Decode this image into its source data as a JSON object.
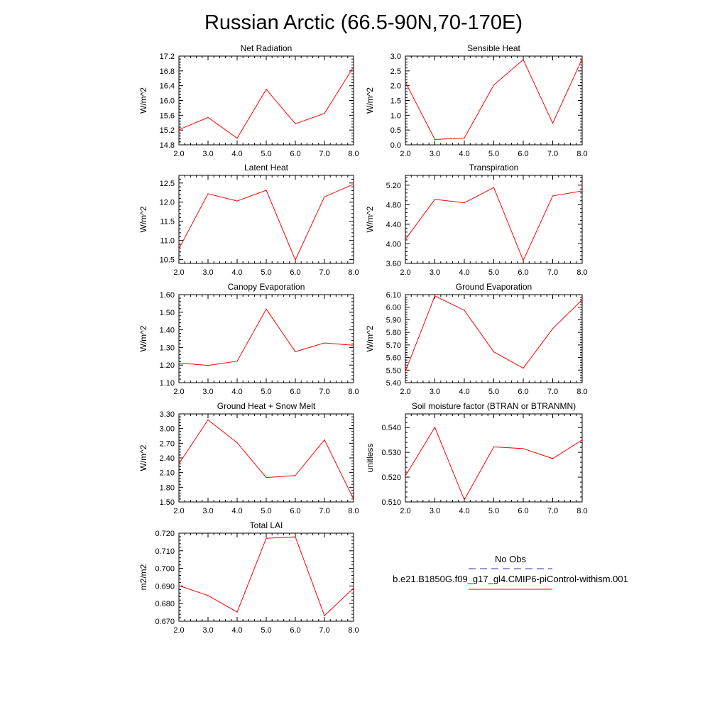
{
  "title": "Russian Arctic (66.5-90N,70-170E)",
  "legend": {
    "obs_label": "No Obs",
    "obs_color": "#3333aa",
    "model_label": "b.e21.B1850G.f09_g17_gl4.CMIP6-piControl-withism.001",
    "model_color": "#ff0000"
  },
  "chart_data": [
    {
      "type": "line",
      "title": "Net Radiation",
      "ylabel": "W/m^2",
      "xlim": [
        2,
        8
      ],
      "ylim": [
        14.8,
        17.2
      ],
      "xticks": [
        "2.0",
        "3.0",
        "4.0",
        "5.0",
        "6.0",
        "7.0",
        "8.0"
      ],
      "yticks": [
        "14.8",
        "15.2",
        "15.6",
        "16.0",
        "16.4",
        "16.8",
        "17.2"
      ],
      "x": [
        2,
        3,
        4,
        5,
        6,
        7,
        8
      ],
      "series": [
        {
          "values": [
            15.21,
            15.54,
            14.98,
            16.3,
            15.37,
            15.65,
            16.91
          ]
        }
      ]
    },
    {
      "type": "line",
      "title": "Sensible Heat",
      "ylabel": "W/m^2",
      "xlim": [
        2,
        8
      ],
      "ylim": [
        0.0,
        3.0
      ],
      "xticks": [
        "2.0",
        "3.0",
        "4.0",
        "5.0",
        "6.0",
        "7.0",
        "8.0"
      ],
      "yticks": [
        "0.0",
        "0.5",
        "1.0",
        "1.5",
        "2.0",
        "2.5",
        "3.0"
      ],
      "x": [
        2,
        3,
        4,
        5,
        6,
        7,
        8
      ],
      "series": [
        {
          "values": [
            2.12,
            0.18,
            0.23,
            2.02,
            2.88,
            0.73,
            2.91
          ]
        }
      ]
    },
    {
      "type": "line",
      "title": "Latent Heat",
      "ylabel": "W/m^2",
      "xlim": [
        2,
        8
      ],
      "ylim": [
        10.4,
        12.7
      ],
      "xticks": [
        "2.0",
        "3.0",
        "4.0",
        "5.0",
        "6.0",
        "7.0",
        "8.0"
      ],
      "yticks": [
        "10.5",
        "11.0",
        "11.5",
        "12.0",
        "12.5"
      ],
      "x": [
        2,
        3,
        4,
        5,
        6,
        7,
        8
      ],
      "series": [
        {
          "values": [
            10.78,
            12.22,
            12.03,
            12.31,
            10.49,
            12.14,
            12.47
          ]
        }
      ]
    },
    {
      "type": "line",
      "title": "Transpiration",
      "ylabel": "W/m^2",
      "xlim": [
        2,
        8
      ],
      "ylim": [
        3.6,
        5.4
      ],
      "xticks": [
        "2.0",
        "3.0",
        "4.0",
        "5.0",
        "6.0",
        "7.0",
        "8.0"
      ],
      "yticks": [
        "3.60",
        "4.00",
        "4.40",
        "4.80",
        "5.20"
      ],
      "x": [
        2,
        3,
        4,
        5,
        6,
        7,
        8
      ],
      "series": [
        {
          "values": [
            4.09,
            4.91,
            4.84,
            5.15,
            3.66,
            4.98,
            5.08
          ]
        }
      ]
    },
    {
      "type": "line",
      "title": "Canopy Evaporation",
      "ylabel": "W/m^2",
      "xlim": [
        2,
        8
      ],
      "ylim": [
        1.1,
        1.6
      ],
      "xticks": [
        "2.0",
        "3.0",
        "4.0",
        "5.0",
        "6.0",
        "7.0",
        "8.0"
      ],
      "yticks": [
        "1.10",
        "1.20",
        "1.30",
        "1.40",
        "1.50",
        "1.60"
      ],
      "x": [
        2,
        3,
        4,
        5,
        6,
        7,
        8
      ],
      "series": [
        {
          "values": [
            1.212,
            1.198,
            1.222,
            1.518,
            1.276,
            1.326,
            1.312
          ]
        }
      ]
    },
    {
      "type": "line",
      "title": "Ground Evaporation",
      "ylabel": "W/m^2",
      "xlim": [
        2,
        8
      ],
      "ylim": [
        5.4,
        6.1
      ],
      "xticks": [
        "2.0",
        "3.0",
        "4.0",
        "5.0",
        "6.0",
        "7.0",
        "8.0"
      ],
      "yticks": [
        "5.40",
        "5.50",
        "5.60",
        "5.70",
        "5.80",
        "5.90",
        "6.00",
        "6.10"
      ],
      "x": [
        2,
        3,
        4,
        5,
        6,
        7,
        8
      ],
      "series": [
        {
          "values": [
            5.49,
            6.09,
            5.975,
            5.645,
            5.515,
            5.83,
            6.06
          ]
        }
      ]
    },
    {
      "type": "line",
      "title": "Ground Heat + Snow Melt",
      "ylabel": "W/m^2",
      "xlim": [
        2,
        8
      ],
      "ylim": [
        1.5,
        3.3
      ],
      "xticks": [
        "2.0",
        "3.0",
        "4.0",
        "5.0",
        "6.0",
        "7.0",
        "8.0"
      ],
      "yticks": [
        "1.50",
        "1.80",
        "2.10",
        "2.40",
        "2.70",
        "3.00",
        "3.30"
      ],
      "x": [
        2,
        3,
        4,
        5,
        6,
        7,
        8
      ],
      "series": [
        {
          "values": [
            2.28,
            3.18,
            2.71,
            2.0,
            2.04,
            2.77,
            1.56
          ]
        }
      ]
    },
    {
      "type": "line",
      "title": "Soil moisture factor (BTRAN or BTRANMN)",
      "ylabel": "unitless",
      "xlim": [
        2,
        8
      ],
      "ylim": [
        0.51,
        0.5455
      ],
      "xticks": [
        "2.0",
        "3.0",
        "4.0",
        "5.0",
        "6.0",
        "7.0",
        "8.0"
      ],
      "yticks": [
        "0.510",
        "0.520",
        "0.530",
        "0.540"
      ],
      "x": [
        2,
        3,
        4,
        5,
        6,
        7,
        8
      ],
      "series": [
        {
          "values": [
            0.5205,
            0.5401,
            0.5109,
            0.5322,
            0.5315,
            0.5275,
            0.535
          ]
        }
      ]
    },
    {
      "type": "line",
      "title": "Total LAI",
      "ylabel": "m2/m2",
      "xlim": [
        2,
        8
      ],
      "ylim": [
        0.67,
        0.72
      ],
      "xticks": [
        "2.0",
        "3.0",
        "4.0",
        "5.0",
        "6.0",
        "7.0",
        "8.0"
      ],
      "yticks": [
        "0.670",
        "0.680",
        "0.690",
        "0.700",
        "0.710",
        "0.720"
      ],
      "x": [
        2,
        3,
        4,
        5,
        6,
        7,
        8
      ],
      "series": [
        {
          "values": [
            0.6902,
            0.6846,
            0.6752,
            0.7171,
            0.7179,
            0.6732,
            0.6888
          ]
        }
      ]
    }
  ]
}
